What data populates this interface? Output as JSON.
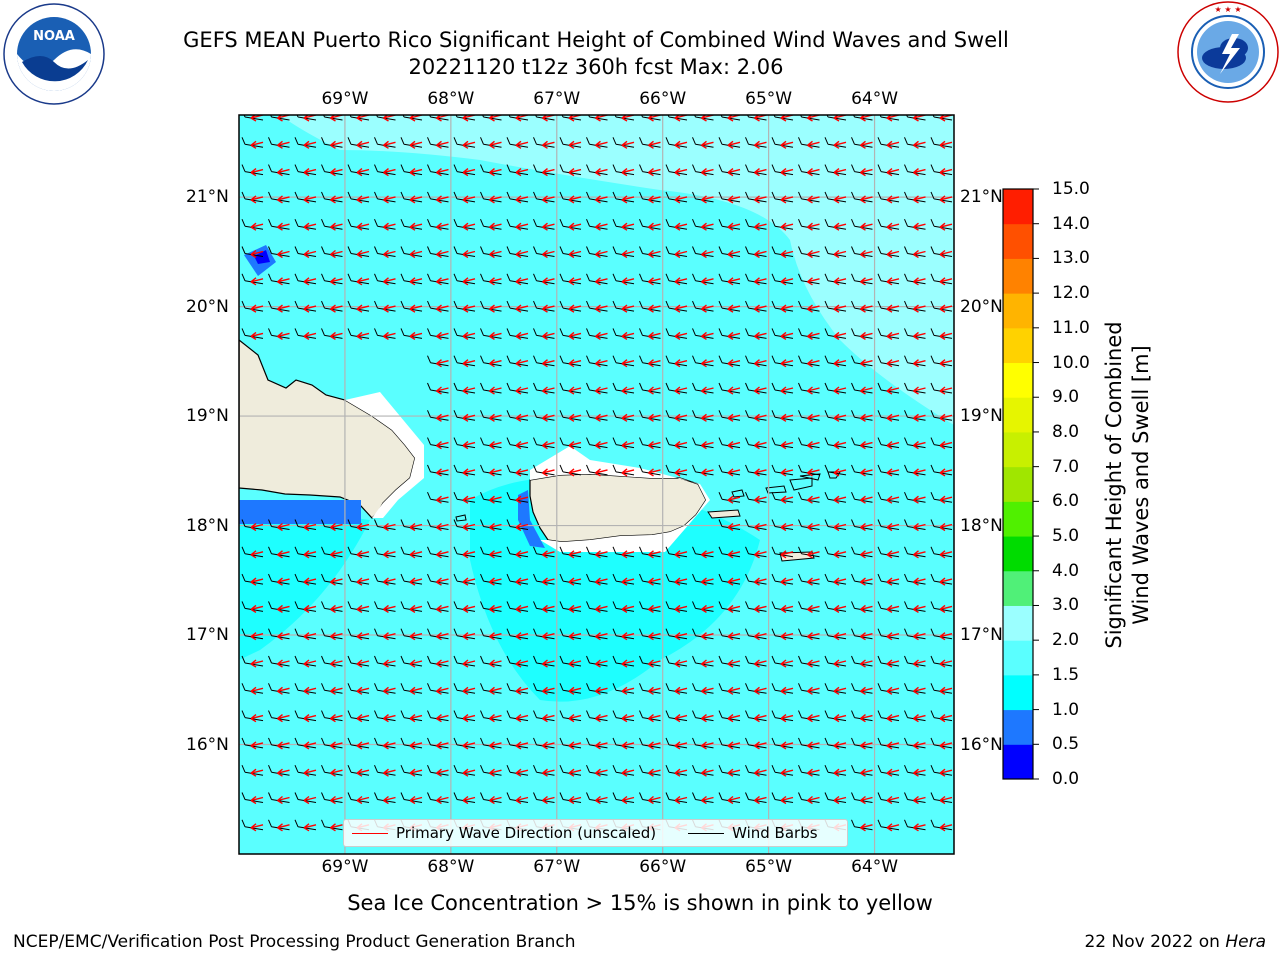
{
  "header": {
    "title_line1": "GEFS MEAN Puerto Rico Significant Height of Combined Wind Waves and Swell",
    "title_line2": "20221120 t12z 360h fcst   Max: 2.06"
  },
  "logos": {
    "noaa": {
      "icon": "noaa-logo",
      "text": "NOAA",
      "ring_text": "NATIONAL OCEANIC AND ATMOSPHERIC ADMINISTRATION · U.S. DEPARTMENT OF COMMERCE"
    },
    "nws": {
      "icon": "nws-logo",
      "ring_text": "NATIONAL WEATHER SERVICE"
    }
  },
  "map": {
    "lon_labels": [
      "69°W",
      "68°W",
      "67°W",
      "66°W",
      "65°W",
      "64°W"
    ],
    "lat_labels": [
      "21°N",
      "20°N",
      "19°N",
      "18°N",
      "17°N",
      "16°N"
    ],
    "lon_values": [
      -69,
      -68,
      -67,
      -66,
      -65,
      -64
    ],
    "lat_values": [
      21,
      20,
      19,
      18,
      17,
      16
    ],
    "extent": {
      "lon_min": -70.0,
      "lon_max": -63.25,
      "lat_min": 15.0,
      "lat_max": 21.75
    },
    "ocean_color": "#1effff",
    "higher_wave_color": "#9bffff",
    "shallow_color": "#1e78ff",
    "land_color": "#efecdc",
    "wind_barb_color": "#000000",
    "wave_dir_color": "#ff0000"
  },
  "legend": {
    "wave_label": "Primary Wave Direction (unscaled)",
    "barb_label": "Wind Barbs"
  },
  "colorbar": {
    "title_line1": "Significant Height of Combined",
    "title_line2": "Wind Waves and Swell [m]",
    "ticks": [
      "15.0",
      "14.0",
      "13.0",
      "12.0",
      "11.0",
      "10.0",
      "9.0",
      "8.0",
      "7.0",
      "6.0",
      "5.0",
      "4.0",
      "3.0",
      "2.0",
      "1.5",
      "1.0",
      "0.5",
      "0.0"
    ],
    "levels": [
      0.0,
      0.5,
      1.0,
      1.5,
      2.0,
      3.0,
      4.0,
      5.0,
      6.0,
      7.0,
      8.0,
      9.0,
      10.0,
      11.0,
      12.0,
      13.0,
      14.0,
      15.0
    ],
    "colors": [
      "#0000ff",
      "#1e78ff",
      "#00ffff",
      "#5affff",
      "#9bffff",
      "#50f078",
      "#00dc00",
      "#50f000",
      "#a0e600",
      "#c8f000",
      "#e6f500",
      "#ffff00",
      "#ffd200",
      "#ffb400",
      "#ff8200",
      "#ff5000",
      "#ff1e00"
    ]
  },
  "footer": {
    "ice_note": "Sea Ice Concentration > 15% is shown in pink to yellow",
    "left": "NCEP/EMC/Verification Post Processing Product Generation Branch",
    "right_prefix": "22 Nov 2022 on ",
    "right_host": "Hera"
  }
}
